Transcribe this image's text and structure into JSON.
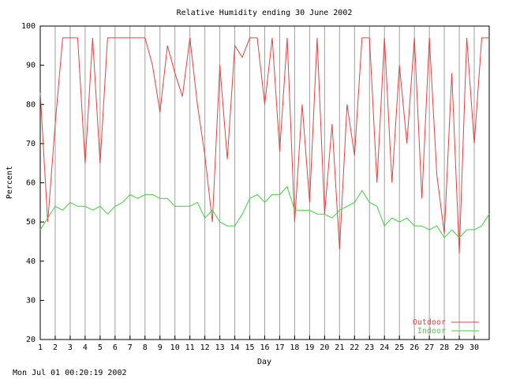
{
  "chart_data": {
    "type": "line",
    "title": "Relative Humidity ending 30 June 2002",
    "x_label": "Day",
    "y_label": "Percent",
    "footer": "Mon Jul 01 00:20:19 2002",
    "x": [
      1,
      1.5,
      2,
      2.5,
      3,
      3.5,
      4,
      4.5,
      5,
      5.5,
      6,
      6.5,
      7,
      7.5,
      8,
      8.5,
      9,
      9.5,
      10,
      10.5,
      11,
      11.5,
      12,
      12.5,
      13,
      13.5,
      14,
      14.5,
      15,
      15.5,
      16,
      16.5,
      17,
      17.5,
      18,
      18.5,
      19,
      19.5,
      20,
      20.5,
      21,
      21.5,
      22,
      22.5,
      23,
      23.5,
      24,
      24.5,
      25,
      25.5,
      26,
      26.5,
      27,
      27.5,
      28,
      28.5,
      29,
      29.5,
      30,
      30.5,
      31
    ],
    "series": [
      {
        "name": "Outdoor",
        "color": "#e84040",
        "values": [
          83,
          50,
          75,
          97,
          97,
          97,
          65,
          97,
          65,
          97,
          97,
          97,
          97,
          97,
          97,
          90,
          78,
          95,
          88,
          82,
          97,
          80,
          67,
          50,
          90,
          66,
          95,
          92,
          97,
          97,
          80,
          97,
          68,
          97,
          50,
          80,
          55,
          97,
          52,
          75,
          43,
          80,
          67,
          97,
          97,
          60,
          97,
          60,
          90,
          70,
          97,
          56,
          97,
          62,
          47,
          88,
          42,
          97,
          70,
          97,
          97
        ]
      },
      {
        "name": "Indoor",
        "color": "#40d040",
        "values": [
          48,
          51,
          54,
          53,
          55,
          54,
          54,
          53,
          54,
          52,
          54,
          55,
          57,
          56,
          57,
          57,
          56,
          56,
          54,
          54,
          54,
          55,
          51,
          53,
          50,
          49,
          49,
          52,
          56,
          57,
          55,
          57,
          57,
          59,
          53,
          53,
          53,
          52,
          52,
          51,
          53,
          54,
          55,
          58,
          55,
          54,
          49,
          51,
          50,
          51,
          49,
          49,
          48,
          49,
          46,
          48,
          46,
          48,
          48,
          49,
          52
        ]
      }
    ],
    "xlim": [
      1,
      31
    ],
    "ylim": [
      20,
      100
    ],
    "xticks": [
      1,
      2,
      3,
      4,
      5,
      6,
      7,
      8,
      9,
      10,
      11,
      12,
      13,
      14,
      15,
      16,
      17,
      18,
      19,
      20,
      21,
      22,
      23,
      24,
      25,
      26,
      27,
      28,
      29,
      30
    ],
    "yticks": [
      20,
      30,
      40,
      50,
      60,
      70,
      80,
      90,
      100
    ],
    "grid": "x",
    "legend": "lower right"
  }
}
